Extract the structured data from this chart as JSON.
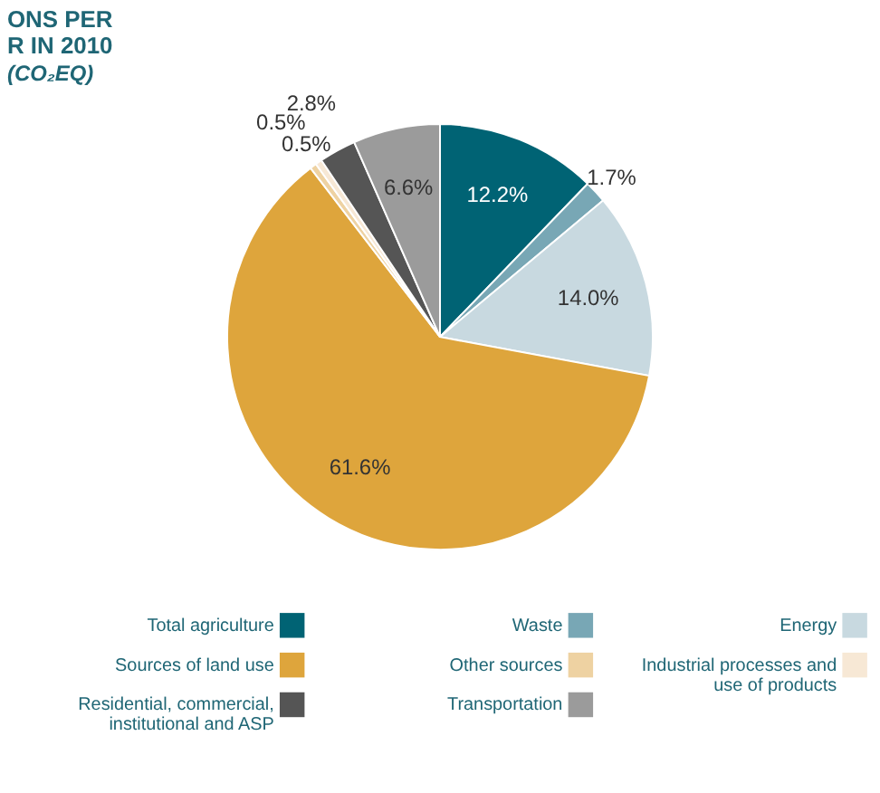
{
  "chart_data": {
    "type": "pie",
    "title": [
      "ONS PER",
      "R IN 2010"
    ],
    "subtitle": "(CO₂EQ)",
    "categories": [
      "Total agriculture",
      "Waste",
      "Energy",
      "Sources of land use",
      "Other sources",
      "Industrial processes and use of products",
      "Residential, commercial, institutional and ASP",
      "Transportation"
    ],
    "values": [
      12.2,
      1.7,
      14.0,
      61.6,
      0.5,
      0.5,
      2.8,
      6.6
    ],
    "value_labels": [
      "12.2%",
      "1.7%",
      "14.0%",
      "61.6%",
      "0.5%",
      "0.5%",
      "2.8%",
      "6.6%"
    ],
    "colors": [
      "#006374",
      "#78a7b5",
      "#c8d9e0",
      "#dea53c",
      "#eed2a2",
      "#f7e8d5",
      "#555555",
      "#9b9b9b"
    ],
    "legend": "bottom"
  }
}
